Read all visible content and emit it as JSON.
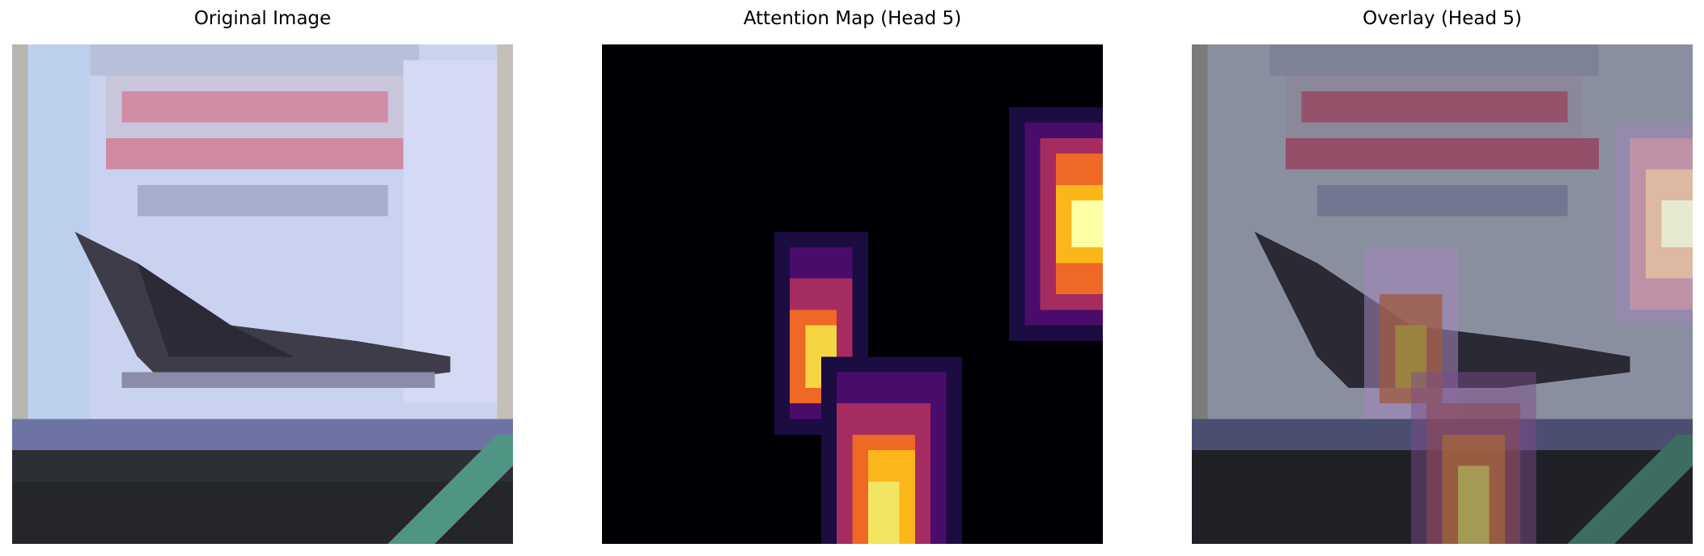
{
  "panels": [
    {
      "title": "Original Image"
    },
    {
      "title": "Attention Map (Head 5)"
    },
    {
      "title": "Overlay (Head 5)"
    }
  ],
  "colors": {
    "sky": "#cdd6f2",
    "sign_border": "#aab2cf",
    "sign_red": "#d9869b",
    "plane": "#3c3a48",
    "ground_dark": "#2a2c32",
    "ground_blue": "#6f76a8",
    "teal_line": "#4f9884",
    "heat_bg": "#000004"
  }
}
